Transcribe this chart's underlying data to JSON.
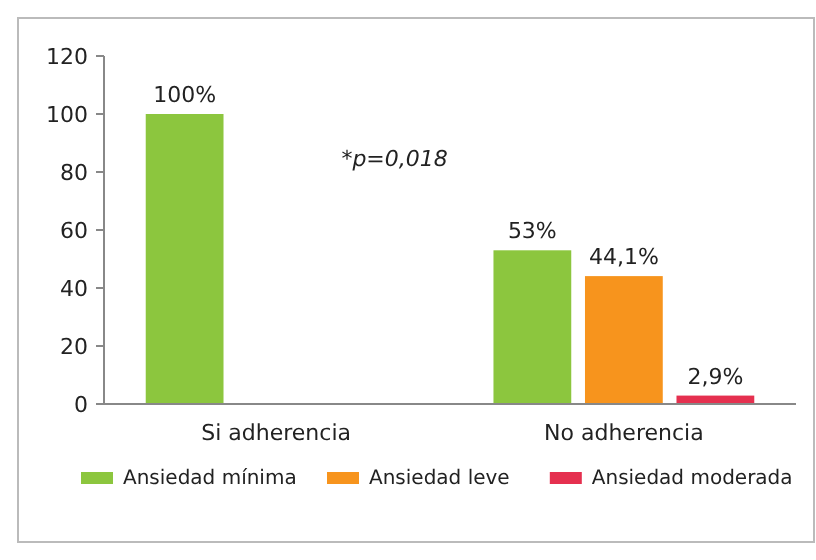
{
  "chart_data": {
    "type": "bar",
    "categories": [
      "Si adherencia",
      "No adherencia"
    ],
    "series": [
      {
        "name": "Ansiedad mínima",
        "color": "#8cc63e",
        "values": [
          100,
          53
        ],
        "value_labels": [
          "100%",
          "53%"
        ]
      },
      {
        "name": "Ansiedad leve",
        "color": "#f7941d",
        "values": [
          null,
          44.1
        ],
        "value_labels": [
          null,
          "44,1%"
        ]
      },
      {
        "name": "Ansiedad moderada",
        "color": "#e5304f",
        "values": [
          null,
          2.9
        ],
        "value_labels": [
          null,
          "2,9%"
        ]
      }
    ],
    "ylim": [
      0,
      120
    ],
    "yticks": [
      0,
      20,
      40,
      60,
      80,
      100,
      120
    ],
    "grid": false,
    "legend": "bottom",
    "annotations": [
      "*p=0,018"
    ]
  }
}
